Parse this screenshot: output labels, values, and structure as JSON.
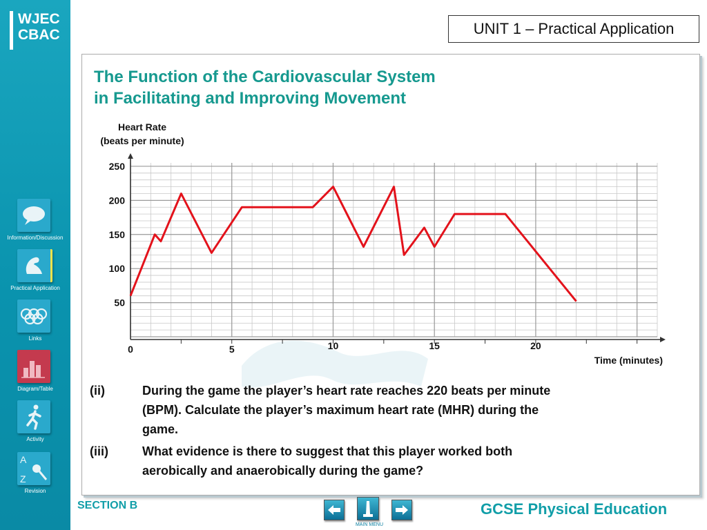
{
  "brand": {
    "logo_line1": "WJEC",
    "logo_line2": "CBAC"
  },
  "header": {
    "unit_title": "UNIT 1 – Practical Application"
  },
  "slide": {
    "title_line1": "The Function of the Cardiovascular System",
    "title_line2": "in Facilitating and Improving Movement"
  },
  "sidebar": {
    "items": [
      {
        "label": "Information/Discussion",
        "icon": "speech-bubble-icon",
        "color": "#2aa9cc"
      },
      {
        "label": "Practical Application",
        "icon": "flexed-arm-icon",
        "color": "#2aa9cc"
      },
      {
        "label": "Links",
        "icon": "olympic-rings-icon",
        "color": "#2aa9cc"
      },
      {
        "label": "Diagram/Table",
        "icon": "bar-chart-icon",
        "color": "#c43a4e"
      },
      {
        "label": "Activity",
        "icon": "running-figure-icon",
        "color": "#2aa9cc"
      },
      {
        "label": "Revision",
        "icon": "a-to-z-icon",
        "color": "#2aa9cc"
      }
    ]
  },
  "chart_data": {
    "type": "line",
    "ylabel_line1": "Heart Rate",
    "ylabel_line2": "(beats per minute)",
    "xlabel": "Time (minutes)",
    "y_ticks": [
      250,
      200,
      150,
      100,
      50
    ],
    "x_ticks": [
      0,
      5,
      10,
      15,
      20
    ],
    "xlim": [
      0,
      26
    ],
    "ylim": [
      0,
      255
    ],
    "grid": true,
    "line_color": "#e3121b",
    "x": [
      0,
      1.2,
      1.5,
      2.5,
      4,
      5.5,
      9,
      10,
      11.5,
      13,
      13.5,
      14.5,
      15,
      16,
      18.5,
      22
    ],
    "y": [
      60,
      150,
      140,
      210,
      123,
      190,
      190,
      220,
      132,
      220,
      120,
      160,
      132,
      180,
      180,
      52
    ]
  },
  "questions": [
    {
      "num": "(ii)",
      "line1": "During the game the player’s heart rate reaches 220 beats per minute",
      "line2": "(BPM). Calculate the player’s maximum heart rate (MHR) during the",
      "line3": "game."
    },
    {
      "num": "(iii)",
      "line1": "What evidence is there to suggest that this player worked both",
      "line2": "aerobically and anaerobically during the game?"
    }
  ],
  "footer": {
    "section": "SECTION B",
    "course": "GCSE Physical Education",
    "main_menu": "MAIN MENU",
    "accent": "#119ea8"
  }
}
